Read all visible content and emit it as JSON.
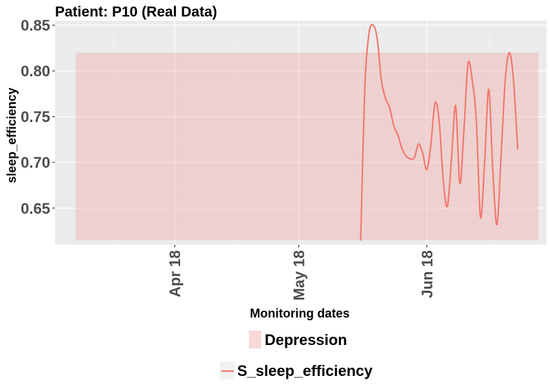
{
  "chart_data": {
    "type": "line",
    "title": "Patient: P10 (Real Data)",
    "xlabel": "Monitoring dates",
    "ylabel": "sleep_efficiency",
    "x_range": [
      "2018-03-03",
      "2018-06-30"
    ],
    "ylim": [
      0.61,
      0.855
    ],
    "y_ticks": [
      0.65,
      0.7,
      0.75,
      0.8,
      0.85
    ],
    "y_tick_labels": [
      "0.65",
      "0.70",
      "0.75",
      "0.80",
      "0.85"
    ],
    "x_ticks": [
      {
        "date": "2018-04-01",
        "label": "Apr 18"
      },
      {
        "date": "2018-05-01",
        "label": "May 18"
      },
      {
        "date": "2018-06-01",
        "label": "Jun 18"
      }
    ],
    "x_minor_ticks": [
      "2018-03-17",
      "2018-04-16",
      "2018-05-16",
      "2018-06-16"
    ],
    "grid": true,
    "bands": [
      {
        "name": "Depression",
        "start": "2018-03-08",
        "end": "2018-06-28",
        "ymin": 0.615,
        "ymax": 0.82,
        "color": "#f2a8a8"
      }
    ],
    "series": [
      {
        "name": "S_sleep_efficiency",
        "color": "#f07a70",
        "points": [
          [
            "2018-05-16",
            0.615
          ],
          [
            "2018-05-17",
            0.78
          ],
          [
            "2018-05-18",
            0.84
          ],
          [
            "2018-05-19",
            0.85
          ],
          [
            "2018-05-20",
            0.835
          ],
          [
            "2018-05-21",
            0.79
          ],
          [
            "2018-05-22",
            0.77
          ],
          [
            "2018-05-23",
            0.76
          ],
          [
            "2018-05-24",
            0.74
          ],
          [
            "2018-05-25",
            0.73
          ],
          [
            "2018-05-26",
            0.715
          ],
          [
            "2018-05-27",
            0.707
          ],
          [
            "2018-05-28",
            0.704
          ],
          [
            "2018-05-29",
            0.705
          ],
          [
            "2018-05-30",
            0.72
          ],
          [
            "2018-05-31",
            0.71
          ],
          [
            "2018-06-01",
            0.692
          ],
          [
            "2018-06-02",
            0.72
          ],
          [
            "2018-06-03",
            0.765
          ],
          [
            "2018-06-04",
            0.745
          ],
          [
            "2018-06-05",
            0.68
          ],
          [
            "2018-06-06",
            0.652
          ],
          [
            "2018-06-07",
            0.705
          ],
          [
            "2018-06-08",
            0.762
          ],
          [
            "2018-06-09",
            0.677
          ],
          [
            "2018-06-10",
            0.735
          ],
          [
            "2018-06-11",
            0.808
          ],
          [
            "2018-06-12",
            0.79
          ],
          [
            "2018-06-13",
            0.745
          ],
          [
            "2018-06-14",
            0.64
          ],
          [
            "2018-06-15",
            0.7
          ],
          [
            "2018-06-16",
            0.78
          ],
          [
            "2018-06-17",
            0.69
          ],
          [
            "2018-06-18",
            0.632
          ],
          [
            "2018-06-19",
            0.708
          ],
          [
            "2018-06-20",
            0.79
          ],
          [
            "2018-06-21",
            0.82
          ],
          [
            "2018-06-22",
            0.79
          ],
          [
            "2018-06-23",
            0.715
          ]
        ]
      }
    ]
  },
  "legend": {
    "band_label": "Depression",
    "line_label": "S_sleep_efficiency"
  },
  "colors": {
    "panel_bg": "#ebebeb",
    "grid": "#ffffff",
    "band": "#f2a8a8",
    "line": "#f07a70",
    "axis_text": "#4d4d4d"
  }
}
